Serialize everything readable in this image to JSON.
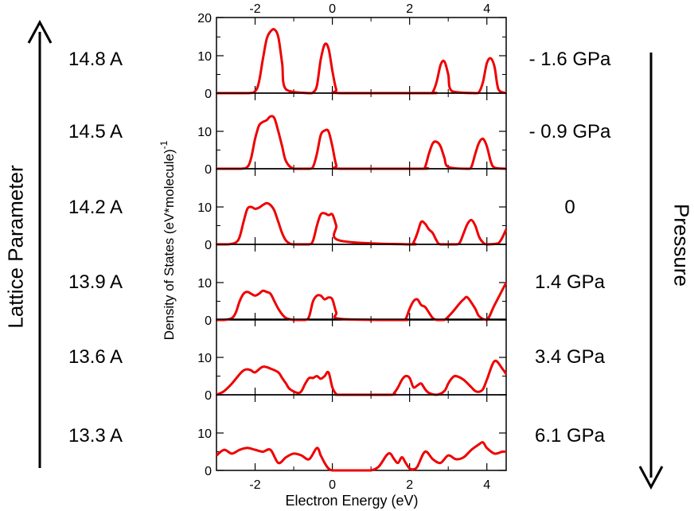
{
  "left_title": "Lattice Parameter",
  "right_title": "Pressure",
  "panels": [
    {
      "lattice": "14.8 A",
      "pressure": "- 1.6 GPa"
    },
    {
      "lattice": "14.5 A",
      "pressure": "- 0.9 GPa"
    },
    {
      "lattice": "14.2 A",
      "pressure": "0"
    },
    {
      "lattice": "13.9 A",
      "pressure": "1.4 GPa"
    },
    {
      "lattice": "13.6 A",
      "pressure": "3.4 GPa"
    },
    {
      "lattice": "13.3 A",
      "pressure": "6.1 GPa"
    }
  ],
  "chart_data": {
    "type": "line",
    "title": "",
    "xlabel": "Electron Energy (eV)",
    "ylabel": "Density of States (eV*molecule)",
    "ylabel_superscript": "-1",
    "xlim": [
      -3,
      4.5
    ],
    "ylim": [
      0,
      20
    ],
    "x_ticks": [
      "-2",
      "0",
      "2",
      "4"
    ],
    "y_ticks": [
      "0",
      "10",
      "20"
    ],
    "series_color": "#ee0000",
    "series": [
      {
        "name": "14.8 A",
        "x": [
          -3.0,
          -2.2,
          -2.0,
          -1.9,
          -1.8,
          -1.7,
          -1.6,
          -1.5,
          -1.4,
          -1.3,
          -1.2,
          -0.6,
          -0.5,
          -0.4,
          -0.3,
          -0.2,
          -0.1,
          0.0,
          0.1,
          0.2,
          2.5,
          2.6,
          2.7,
          2.8,
          2.9,
          3.0,
          3.1,
          3.7,
          3.8,
          3.9,
          4.0,
          4.1,
          4.2,
          4.3,
          4.5
        ],
        "y": [
          0,
          0,
          0.5,
          3,
          9,
          14.5,
          16.5,
          17,
          15,
          8,
          1,
          0,
          0.2,
          2,
          9,
          13,
          12,
          6,
          1,
          0,
          0,
          0.3,
          3,
          7.5,
          8.5,
          5,
          0.5,
          0,
          0.3,
          3,
          8,
          9.3,
          7,
          1,
          0
        ]
      },
      {
        "name": "14.5 A",
        "x": [
          -3.0,
          -2.4,
          -2.2,
          -2.1,
          -2.0,
          -1.9,
          -1.8,
          -1.7,
          -1.6,
          -1.5,
          -1.4,
          -1.3,
          -1.2,
          -1.0,
          -0.6,
          -0.5,
          -0.4,
          -0.3,
          -0.2,
          -0.1,
          0.0,
          0.1,
          0.2,
          2.3,
          2.4,
          2.5,
          2.6,
          2.7,
          2.8,
          2.9,
          3.0,
          3.5,
          3.6,
          3.7,
          3.8,
          3.9,
          4.0,
          4.1,
          4.2,
          4.5
        ],
        "y": [
          0,
          0,
          0.5,
          3,
          8,
          11.5,
          12.5,
          13,
          14,
          13.5,
          10,
          6,
          2,
          0,
          0,
          0.5,
          4,
          9,
          10.2,
          10,
          6,
          1,
          0,
          0,
          0.5,
          4,
          6.8,
          7.2,
          6,
          3,
          0.5,
          0,
          0.5,
          4,
          7,
          8,
          6,
          2,
          0.3,
          0
        ]
      },
      {
        "name": "14.2 A",
        "x": [
          -3.0,
          -2.7,
          -2.5,
          -2.4,
          -2.3,
          -2.2,
          -2.1,
          -2.0,
          -1.9,
          -1.8,
          -1.7,
          -1.6,
          -1.5,
          -1.4,
          -1.3,
          -1.2,
          -1.1,
          -1.0,
          -0.6,
          -0.5,
          -0.4,
          -0.3,
          -0.2,
          -0.1,
          0.0,
          0.1,
          0.2,
          2.0,
          2.1,
          2.2,
          2.3,
          2.4,
          2.5,
          2.6,
          2.7,
          2.8,
          3.2,
          3.3,
          3.4,
          3.5,
          3.6,
          3.7,
          3.8,
          3.9,
          4.0,
          4.3,
          4.5
        ],
        "y": [
          0,
          0,
          0.5,
          2,
          6,
          9.5,
          10,
          9.5,
          9.8,
          10.5,
          11,
          10.5,
          9,
          6,
          3,
          1,
          0.2,
          0,
          0,
          1,
          5,
          8,
          8.3,
          7.8,
          8,
          5,
          1,
          0,
          0.5,
          3,
          6,
          5.5,
          4,
          3,
          1,
          0,
          0,
          0.5,
          3,
          5.5,
          6.5,
          5,
          2,
          0.5,
          0,
          0.3,
          4
        ]
      },
      {
        "name": "13.9 A",
        "x": [
          -3.0,
          -2.8,
          -2.6,
          -2.5,
          -2.4,
          -2.3,
          -2.2,
          -2.1,
          -2.0,
          -1.9,
          -1.8,
          -1.7,
          -1.6,
          -1.5,
          -1.4,
          -1.3,
          -1.2,
          -1.1,
          -1.0,
          -0.7,
          -0.6,
          -0.5,
          -0.4,
          -0.3,
          -0.2,
          -0.1,
          0.0,
          0.1,
          0.2,
          1.8,
          1.9,
          2.0,
          2.1,
          2.2,
          2.3,
          2.4,
          2.5,
          2.6,
          2.7,
          2.9,
          3.1,
          3.3,
          3.4,
          3.5,
          3.7,
          3.8,
          4.0,
          4.2,
          4.5
        ],
        "y": [
          0,
          0,
          0.5,
          2,
          5,
          7,
          7.5,
          7,
          6.5,
          7,
          7.8,
          7.5,
          7,
          5,
          3,
          1.5,
          0.5,
          0.2,
          0,
          0,
          1,
          5,
          6.5,
          6.5,
          5.5,
          6,
          5.5,
          2,
          0.3,
          0,
          0.3,
          3,
          5,
          5.5,
          4,
          3.5,
          2,
          0.5,
          0,
          0,
          2,
          4.5,
          5.5,
          6,
          3,
          1,
          0,
          4,
          10
        ]
      },
      {
        "name": "13.6 A",
        "x": [
          -3.0,
          -2.8,
          -2.6,
          -2.4,
          -2.3,
          -2.2,
          -2.1,
          -2.0,
          -1.8,
          -1.6,
          -1.4,
          -1.3,
          -1.2,
          -1.1,
          -0.9,
          -0.8,
          -0.7,
          -0.6,
          -0.5,
          -0.4,
          -0.3,
          -0.2,
          -0.1,
          0.0,
          0.1,
          0.2,
          1.5,
          1.6,
          1.7,
          1.8,
          1.9,
          2.0,
          2.1,
          2.2,
          2.3,
          2.4,
          2.5,
          2.7,
          2.9,
          3.0,
          3.1,
          3.2,
          3.4,
          3.6,
          3.7,
          3.8,
          3.9,
          4.0,
          4.2,
          4.4,
          4.5
        ],
        "y": [
          0,
          1,
          3,
          5.5,
          6.5,
          6.8,
          6.5,
          6,
          7.5,
          7,
          6,
          4.5,
          3,
          1.5,
          0.5,
          1,
          3,
          4.5,
          4.5,
          5,
          4.3,
          5,
          6,
          2,
          0.2,
          0,
          0,
          0.5,
          2,
          4,
          5,
          4.5,
          2,
          2.5,
          3,
          1.5,
          0.5,
          0,
          1,
          3,
          4.5,
          5,
          4,
          2,
          1,
          0.8,
          1.5,
          4,
          9,
          7,
          5.5
        ]
      },
      {
        "name": "13.3 A",
        "x": [
          -3.0,
          -2.8,
          -2.6,
          -2.4,
          -2.2,
          -2.0,
          -1.8,
          -1.6,
          -1.4,
          -1.2,
          -1.0,
          -0.8,
          -0.6,
          -0.4,
          -0.3,
          -0.2,
          -0.1,
          0.0,
          0.2,
          0.5,
          0.8,
          1.0,
          1.2,
          1.4,
          1.5,
          1.6,
          1.7,
          1.8,
          1.9,
          2.0,
          2.1,
          2.2,
          2.4,
          2.6,
          2.8,
          3.0,
          3.2,
          3.4,
          3.6,
          3.8,
          3.9,
          4.0,
          4.2,
          4.4,
          4.5
        ],
        "y": [
          4,
          5.5,
          4.5,
          5.5,
          6,
          5.5,
          5,
          5.5,
          2,
          3.5,
          4.5,
          4,
          3,
          6,
          4,
          2,
          0.5,
          0,
          0,
          0,
          0,
          0,
          1,
          4,
          4.5,
          3,
          2,
          3.5,
          2,
          0.5,
          0.3,
          1,
          5,
          3,
          2,
          4,
          3,
          3.5,
          5.5,
          7,
          7.5,
          6,
          4.5,
          5,
          5
        ]
      }
    ]
  }
}
